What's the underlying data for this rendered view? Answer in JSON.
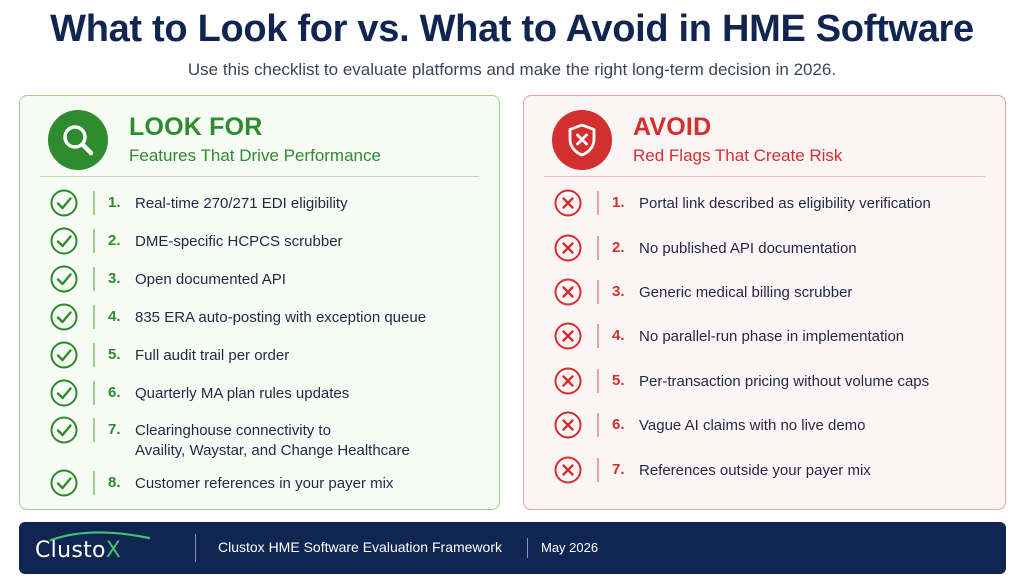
{
  "header": {
    "title": "What to Look for vs. What to Avoid in HME Software",
    "subtitle": "Use this checklist to evaluate platforms and make the right long-term decision in 2026."
  },
  "look_for": {
    "heading": "LOOK FOR",
    "subheading": "Features That Drive Performance",
    "icon": "magnifier-icon",
    "color": "#2e8b2e",
    "items": [
      {
        "num": "1.",
        "text": "Real-time 270/271 EDI eligibility"
      },
      {
        "num": "2.",
        "text": "DME-specific HCPCS scrubber"
      },
      {
        "num": "3.",
        "text": "Open documented API"
      },
      {
        "num": "4.",
        "text": "835 ERA auto-posting with exception queue"
      },
      {
        "num": "5.",
        "text": "Full audit trail per order"
      },
      {
        "num": "6.",
        "text": "Quarterly MA plan rules updates"
      },
      {
        "num": "7.",
        "text": "Clearinghouse connectivity to",
        "text2": "Availity, Waystar, and Change Healthcare"
      },
      {
        "num": "8.",
        "text": "Customer references in your payer mix"
      }
    ]
  },
  "avoid": {
    "heading": "AVOID",
    "subheading": "Red Flags That Create Risk",
    "icon": "shield-x-icon",
    "color": "#d32f2f",
    "items": [
      {
        "num": "1.",
        "text": "Portal link described as eligibility verification"
      },
      {
        "num": "2.",
        "text": "No published API documentation"
      },
      {
        "num": "3.",
        "text": "Generic medical billing scrubber"
      },
      {
        "num": "4.",
        "text": "No parallel-run phase in implementation"
      },
      {
        "num": "5.",
        "text": "Per-transaction pricing without volume caps"
      },
      {
        "num": "6.",
        "text": "Vague AI claims with no live demo"
      },
      {
        "num": "7.",
        "text": "References outside your payer mix"
      }
    ]
  },
  "footer": {
    "logo": "Clustox",
    "logo_main": "Clusto",
    "logo_accent": "X",
    "framework": "Clustox HME Software Evaluation Framework",
    "date": "May 2026",
    "background": "#112553"
  }
}
